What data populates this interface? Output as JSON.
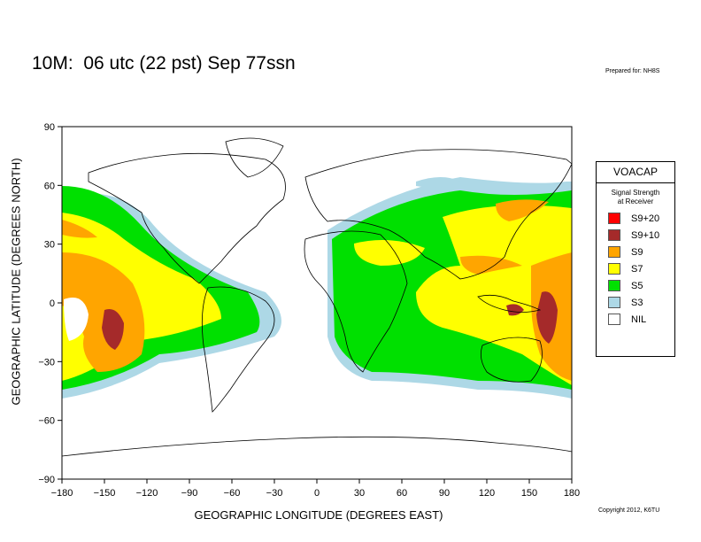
{
  "title": "10M:  06 utc (22 pst) Sep 77ssn",
  "prepared_for": "Prepared for: NH8S",
  "copyright": "Copyright 2012, K6TU",
  "x_axis": {
    "label": "GEOGRAPHIC LONGITUDE (DEGREES EAST)",
    "ticks": [
      "−180",
      "−150",
      "−120",
      "−90",
      "−60",
      "−30",
      "0",
      "30",
      "60",
      "90",
      "120",
      "150",
      "180"
    ]
  },
  "y_axis": {
    "label": "GEOGRAPHIC LATITUDE (DEGREES NORTH)",
    "ticks": [
      "90",
      "60",
      "30",
      "0",
      "−30",
      "−60",
      "−90"
    ]
  },
  "legend": {
    "title": "VOACAP",
    "subtitle_line1": "Signal Strength",
    "subtitle_line2": "at Receiver",
    "items": [
      {
        "label": "S9+20",
        "color": "#ff0000"
      },
      {
        "label": "S9+10",
        "color": "#a52a2a"
      },
      {
        "label": "S9",
        "color": "#ffa500"
      },
      {
        "label": "S7",
        "color": "#ffff00"
      },
      {
        "label": "S5",
        "color": "#00e000"
      },
      {
        "label": "S3",
        "color": "#add8e6"
      },
      {
        "label": "NIL",
        "color": "#ffffff"
      }
    ]
  }
}
